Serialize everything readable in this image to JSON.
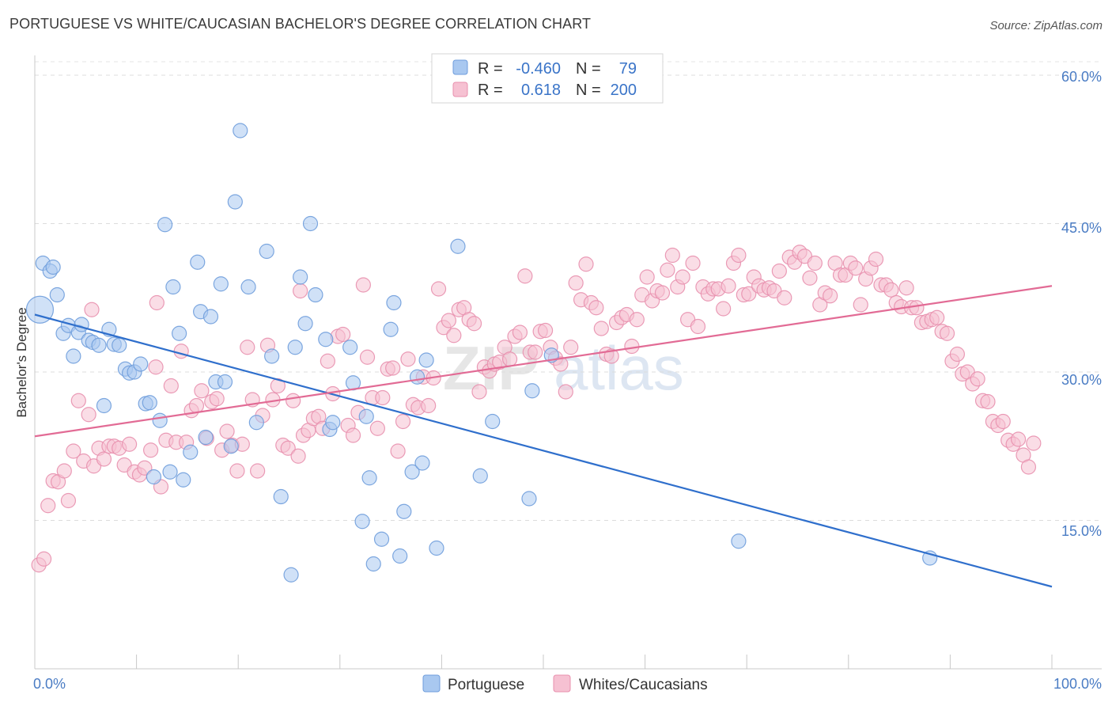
{
  "title": "PORTUGUESE VS WHITE/CAUCASIAN BACHELOR'S DEGREE CORRELATION CHART",
  "source": "Source: ZipAtlas.com",
  "colors": {
    "blue_fill": "#a9c8f0",
    "blue_stroke": "#6f9ddc",
    "blue_line": "#2f6fcc",
    "pink_fill": "#f6c1d2",
    "pink_stroke": "#e890ae",
    "pink_line": "#e26b95",
    "tick_text": "#4a7cc4"
  },
  "chart_data": {
    "type": "scatter",
    "xlabel": "",
    "ylabel": "Bachelor's Degree",
    "xlim": [
      0,
      100
    ],
    "ylim": [
      0,
      62
    ],
    "x_tick_labels": [
      "0.0%",
      "100.0%"
    ],
    "y_ticks": [
      15,
      30,
      45,
      60
    ],
    "y_tick_labels": [
      "15.0%",
      "30.0%",
      "45.0%",
      "60.0%"
    ],
    "grid": true,
    "watermark": "ZIPatlas",
    "legend": {
      "series_a": {
        "r_label": "R =",
        "r_value": "-0.460",
        "n_label": "N =",
        "n_value": "79"
      },
      "series_b": {
        "r_label": "R =",
        "r_value": "0.618",
        "n_label": "N =",
        "n_value": "200"
      }
    },
    "series": [
      {
        "name": "Portuguese",
        "color": "#a9c8f0",
        "trend": {
          "x": [
            0,
            100
          ],
          "y": [
            35.8,
            8.3
          ]
        },
        "points": [
          [
            0.5,
            36.3
          ],
          [
            0.8,
            41.0
          ],
          [
            1.5,
            40.2
          ],
          [
            1.8,
            40.6
          ],
          [
            2.2,
            37.8
          ],
          [
            2.8,
            33.9
          ],
          [
            3.3,
            34.7
          ],
          [
            3.8,
            31.6
          ],
          [
            4.3,
            34.0
          ],
          [
            4.6,
            34.8
          ],
          [
            5.3,
            33.2
          ],
          [
            5.7,
            33.0
          ],
          [
            6.3,
            32.7
          ],
          [
            6.8,
            26.6
          ],
          [
            7.3,
            34.3
          ],
          [
            7.8,
            32.8
          ],
          [
            8.3,
            32.7
          ],
          [
            8.9,
            30.3
          ],
          [
            9.3,
            29.9
          ],
          [
            9.8,
            30.0
          ],
          [
            10.4,
            30.8
          ],
          [
            10.9,
            26.8
          ],
          [
            11.3,
            26.9
          ],
          [
            11.7,
            19.4
          ],
          [
            12.3,
            25.1
          ],
          [
            12.8,
            44.9
          ],
          [
            13.3,
            19.9
          ],
          [
            13.6,
            38.6
          ],
          [
            14.2,
            33.9
          ],
          [
            14.6,
            19.1
          ],
          [
            15.3,
            21.9
          ],
          [
            16.0,
            41.1
          ],
          [
            16.3,
            36.1
          ],
          [
            16.8,
            23.4
          ],
          [
            17.3,
            35.6
          ],
          [
            17.8,
            29.0
          ],
          [
            18.3,
            38.9
          ],
          [
            18.7,
            29.0
          ],
          [
            19.3,
            22.5
          ],
          [
            19.7,
            47.2
          ],
          [
            20.2,
            54.4
          ],
          [
            21.0,
            38.6
          ],
          [
            21.8,
            24.9
          ],
          [
            22.8,
            42.2
          ],
          [
            23.3,
            31.6
          ],
          [
            24.2,
            17.4
          ],
          [
            25.2,
            9.5
          ],
          [
            25.6,
            32.5
          ],
          [
            26.1,
            39.6
          ],
          [
            26.6,
            34.9
          ],
          [
            27.1,
            45.0
          ],
          [
            27.6,
            37.8
          ],
          [
            28.6,
            33.3
          ],
          [
            29.0,
            24.2
          ],
          [
            29.3,
            24.9
          ],
          [
            31.0,
            32.5
          ],
          [
            31.3,
            28.9
          ],
          [
            32.2,
            14.9
          ],
          [
            32.6,
            25.5
          ],
          [
            32.9,
            19.3
          ],
          [
            33.3,
            10.6
          ],
          [
            34.1,
            13.1
          ],
          [
            35.0,
            34.3
          ],
          [
            35.3,
            37.0
          ],
          [
            35.9,
            11.4
          ],
          [
            36.3,
            15.9
          ],
          [
            37.1,
            19.9
          ],
          [
            37.6,
            29.5
          ],
          [
            38.1,
            20.8
          ],
          [
            38.5,
            31.2
          ],
          [
            39.5,
            12.2
          ],
          [
            41.6,
            42.7
          ],
          [
            43.8,
            19.5
          ],
          [
            45.0,
            25.0
          ],
          [
            48.6,
            17.2
          ],
          [
            48.9,
            28.1
          ],
          [
            50.8,
            31.7
          ],
          [
            69.2,
            12.9
          ],
          [
            88.0,
            11.2
          ]
        ]
      },
      {
        "name": "Whites/Caucasians",
        "color": "#f6c1d2",
        "trend": {
          "x": [
            0,
            100
          ],
          "y": [
            23.5,
            38.7
          ]
        },
        "points": [
          [
            0.4,
            10.5
          ],
          [
            0.9,
            11.1
          ],
          [
            1.3,
            16.5
          ],
          [
            1.8,
            19.0
          ],
          [
            2.3,
            18.9
          ],
          [
            2.9,
            20.0
          ],
          [
            3.3,
            17.0
          ],
          [
            3.8,
            22.0
          ],
          [
            4.3,
            27.1
          ],
          [
            4.8,
            21.0
          ],
          [
            5.3,
            25.7
          ],
          [
            5.8,
            20.5
          ],
          [
            6.3,
            22.3
          ],
          [
            6.8,
            21.2
          ],
          [
            7.3,
            22.5
          ],
          [
            7.8,
            22.5
          ],
          [
            8.3,
            22.3
          ],
          [
            8.8,
            20.6
          ],
          [
            9.3,
            22.7
          ],
          [
            9.8,
            19.9
          ],
          [
            10.3,
            19.6
          ],
          [
            10.8,
            20.3
          ],
          [
            11.4,
            22.1
          ],
          [
            11.9,
            30.5
          ],
          [
            12.4,
            18.4
          ],
          [
            12.9,
            23.1
          ],
          [
            13.4,
            28.6
          ],
          [
            13.9,
            22.9
          ],
          [
            14.4,
            32.1
          ],
          [
            14.9,
            22.9
          ],
          [
            15.4,
            26.1
          ],
          [
            15.9,
            26.6
          ],
          [
            16.4,
            28.1
          ],
          [
            16.9,
            23.3
          ],
          [
            17.4,
            27.0
          ],
          [
            17.9,
            27.3
          ],
          [
            18.4,
            22.1
          ],
          [
            18.9,
            24.0
          ],
          [
            19.4,
            22.6
          ],
          [
            19.9,
            20.0
          ],
          [
            20.4,
            22.7
          ],
          [
            20.9,
            32.5
          ],
          [
            21.4,
            27.2
          ],
          [
            21.9,
            20.0
          ],
          [
            22.4,
            25.6
          ],
          [
            22.9,
            32.7
          ],
          [
            23.4,
            27.2
          ],
          [
            23.9,
            28.6
          ],
          [
            24.4,
            22.6
          ],
          [
            24.9,
            22.3
          ],
          [
            25.4,
            27.1
          ],
          [
            25.9,
            21.5
          ],
          [
            26.4,
            23.6
          ],
          [
            26.9,
            24.1
          ],
          [
            27.4,
            25.3
          ],
          [
            27.9,
            25.5
          ],
          [
            28.3,
            24.3
          ],
          [
            28.8,
            31.1
          ],
          [
            29.3,
            27.8
          ],
          [
            29.8,
            33.6
          ],
          [
            30.3,
            33.8
          ],
          [
            30.8,
            24.6
          ],
          [
            31.3,
            23.6
          ],
          [
            31.8,
            25.9
          ],
          [
            32.3,
            38.8
          ],
          [
            32.7,
            31.5
          ],
          [
            33.2,
            27.4
          ],
          [
            33.7,
            24.3
          ],
          [
            34.2,
            27.4
          ],
          [
            34.7,
            30.3
          ],
          [
            35.2,
            30.4
          ],
          [
            35.7,
            22.0
          ],
          [
            36.2,
            25.0
          ],
          [
            36.7,
            31.3
          ],
          [
            37.2,
            26.7
          ],
          [
            37.7,
            26.4
          ],
          [
            38.2,
            29.5
          ],
          [
            38.7,
            26.6
          ],
          [
            39.2,
            29.4
          ],
          [
            39.7,
            38.4
          ],
          [
            40.2,
            34.5
          ],
          [
            40.7,
            35.2
          ],
          [
            41.2,
            33.7
          ],
          [
            41.7,
            36.3
          ],
          [
            42.2,
            36.5
          ],
          [
            42.7,
            35.3
          ],
          [
            43.2,
            34.9
          ],
          [
            43.7,
            28.0
          ],
          [
            44.2,
            30.5
          ],
          [
            44.7,
            30.1
          ],
          [
            45.2,
            30.8
          ],
          [
            45.7,
            31.0
          ],
          [
            46.2,
            32.5
          ],
          [
            46.7,
            31.3
          ],
          [
            47.2,
            33.6
          ],
          [
            47.7,
            34.0
          ],
          [
            48.2,
            39.7
          ],
          [
            48.7,
            32.0
          ],
          [
            49.2,
            32.0
          ],
          [
            49.7,
            34.1
          ],
          [
            50.2,
            34.2
          ],
          [
            50.7,
            32.5
          ],
          [
            51.2,
            31.4
          ],
          [
            51.7,
            30.8
          ],
          [
            52.2,
            28.0
          ],
          [
            52.7,
            32.5
          ],
          [
            53.2,
            39.0
          ],
          [
            53.7,
            37.3
          ],
          [
            54.2,
            40.9
          ],
          [
            54.7,
            37.0
          ],
          [
            55.2,
            36.5
          ],
          [
            55.7,
            34.4
          ],
          [
            56.2,
            31.8
          ],
          [
            56.7,
            31.6
          ],
          [
            57.2,
            35.0
          ],
          [
            57.7,
            35.5
          ],
          [
            58.2,
            35.8
          ],
          [
            58.7,
            32.6
          ],
          [
            59.2,
            35.3
          ],
          [
            59.7,
            37.8
          ],
          [
            60.2,
            39.6
          ],
          [
            60.7,
            37.2
          ],
          [
            61.2,
            38.2
          ],
          [
            61.7,
            38.0
          ],
          [
            62.2,
            40.3
          ],
          [
            62.7,
            41.8
          ],
          [
            63.2,
            38.6
          ],
          [
            63.7,
            39.6
          ],
          [
            64.2,
            35.3
          ],
          [
            64.7,
            41.0
          ],
          [
            65.2,
            34.6
          ],
          [
            65.7,
            38.6
          ],
          [
            66.2,
            37.9
          ],
          [
            66.7,
            38.4
          ],
          [
            67.2,
            38.4
          ],
          [
            67.7,
            36.4
          ],
          [
            68.2,
            38.7
          ],
          [
            68.7,
            41.0
          ],
          [
            69.2,
            41.8
          ],
          [
            69.7,
            37.8
          ],
          [
            70.2,
            37.9
          ],
          [
            70.7,
            39.6
          ],
          [
            71.2,
            38.7
          ],
          [
            71.7,
            38.3
          ],
          [
            72.2,
            38.5
          ],
          [
            72.7,
            38.2
          ],
          [
            73.2,
            40.2
          ],
          [
            73.7,
            37.5
          ],
          [
            74.2,
            41.6
          ],
          [
            74.7,
            41.1
          ],
          [
            75.2,
            42.1
          ],
          [
            75.7,
            41.7
          ],
          [
            76.2,
            39.5
          ],
          [
            76.7,
            41.0
          ],
          [
            77.2,
            36.8
          ],
          [
            77.7,
            38.0
          ],
          [
            78.2,
            37.7
          ],
          [
            78.7,
            41.0
          ],
          [
            79.2,
            39.8
          ],
          [
            79.7,
            39.8
          ],
          [
            80.2,
            41.0
          ],
          [
            80.7,
            40.5
          ],
          [
            81.2,
            36.8
          ],
          [
            81.7,
            39.4
          ],
          [
            82.2,
            40.5
          ],
          [
            82.7,
            41.4
          ],
          [
            83.2,
            38.8
          ],
          [
            83.7,
            38.8
          ],
          [
            84.2,
            38.3
          ],
          [
            84.7,
            37.0
          ],
          [
            85.2,
            36.6
          ],
          [
            85.7,
            38.5
          ],
          [
            86.2,
            36.5
          ],
          [
            86.7,
            36.5
          ],
          [
            87.2,
            35.0
          ],
          [
            87.7,
            35.1
          ],
          [
            88.2,
            35.3
          ],
          [
            88.7,
            35.5
          ],
          [
            89.2,
            34.1
          ],
          [
            89.7,
            33.9
          ],
          [
            90.2,
            31.1
          ],
          [
            90.7,
            31.8
          ],
          [
            91.2,
            29.8
          ],
          [
            91.7,
            30.0
          ],
          [
            92.2,
            28.8
          ],
          [
            92.7,
            29.3
          ],
          [
            93.2,
            27.1
          ],
          [
            93.7,
            27.0
          ],
          [
            94.2,
            25.0
          ],
          [
            94.7,
            24.6
          ],
          [
            95.2,
            25.0
          ],
          [
            95.7,
            23.1
          ],
          [
            96.2,
            22.7
          ],
          [
            96.7,
            23.2
          ],
          [
            97.2,
            21.6
          ],
          [
            97.7,
            20.4
          ],
          [
            98.2,
            22.8
          ],
          [
            5.6,
            36.3
          ],
          [
            12.0,
            37.0
          ],
          [
            26.1,
            38.2
          ]
        ]
      }
    ]
  }
}
